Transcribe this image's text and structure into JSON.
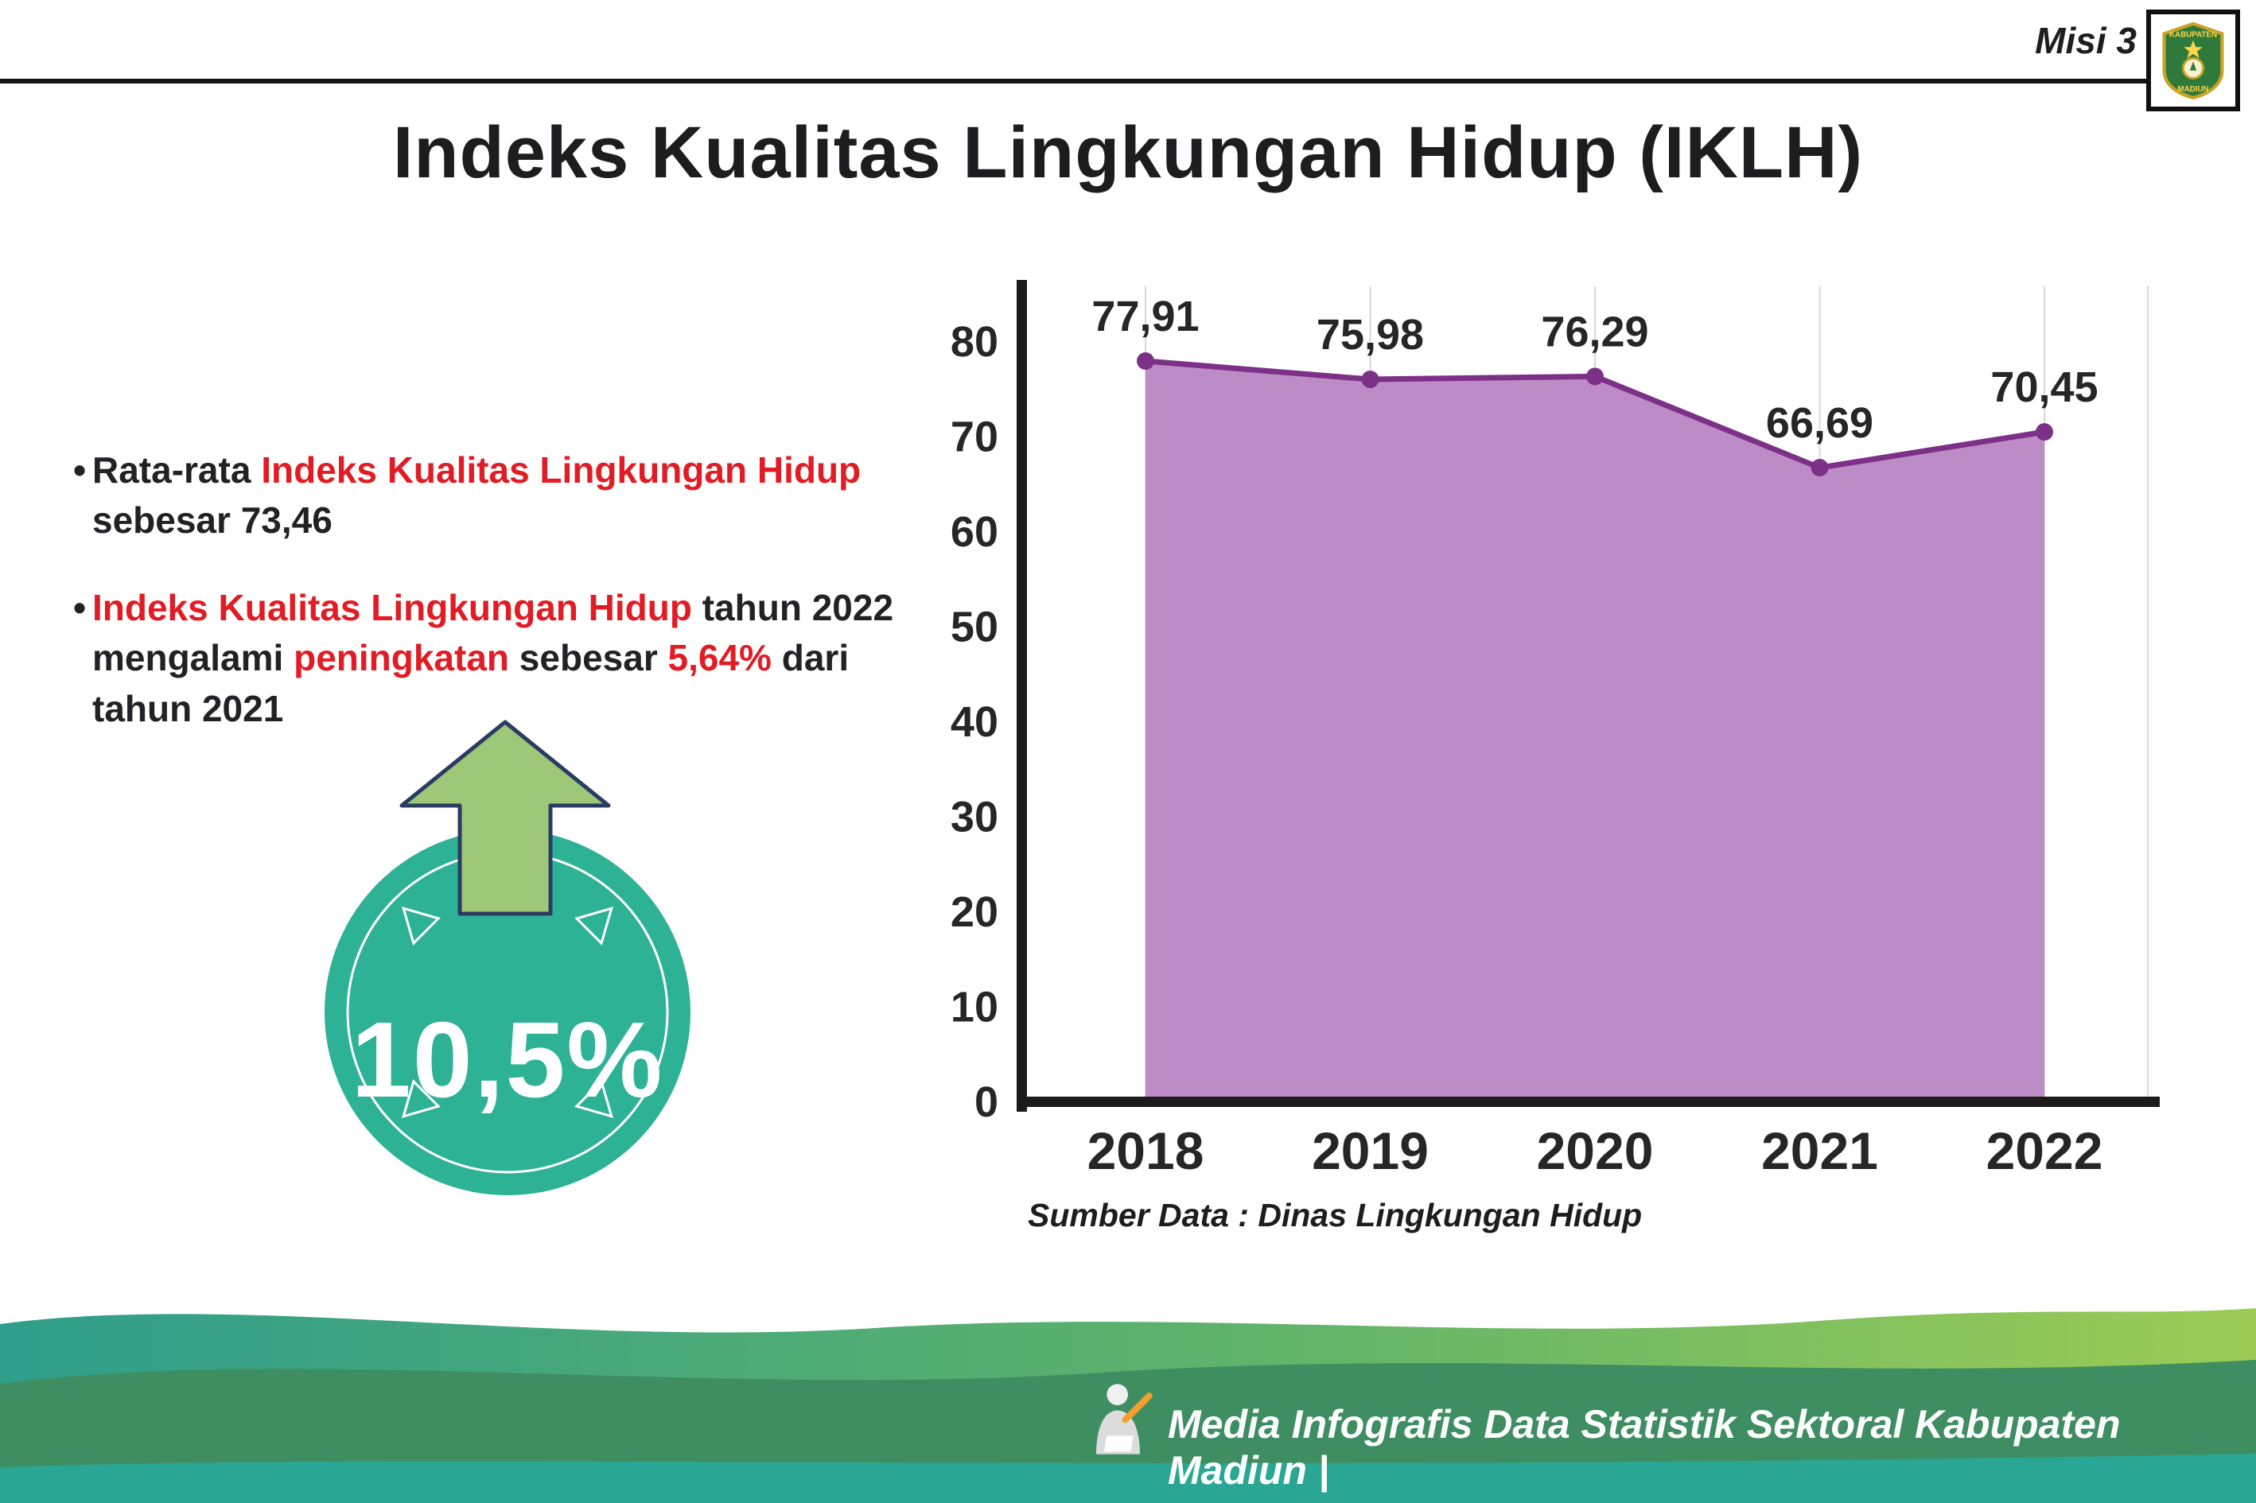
{
  "header": {
    "misi": "Misi 3",
    "title": "Indeks Kualitas Lingkungan Hidup (IKLH)",
    "logo": {
      "top_text": "KABUPATEN",
      "bottom_text": "MADIUN"
    }
  },
  "list": {
    "bullet_char": "•",
    "items": [
      {
        "segments": [
          {
            "t": "Rata-rata ",
            "c": "dark"
          },
          {
            "t": "Indeks Kualitas Lingkungan Hidup",
            "c": "red"
          },
          {
            "t": " sebesar 73,46",
            "c": "dark"
          }
        ]
      },
      {
        "segments": [
          {
            "t": "Indeks Kualitas Lingkungan Hidup",
            "c": "red"
          },
          {
            "t": " tahun 2022 mengalami ",
            "c": "dark"
          },
          {
            "t": "peningkatan",
            "c": "red"
          },
          {
            "t": " sebesar ",
            "c": "dark"
          },
          {
            "t": "5,64%",
            "c": "red"
          },
          {
            "t": " dari tahun 2021",
            "c": "dark"
          }
        ]
      }
    ]
  },
  "badge": {
    "value": "10,5%"
  },
  "chart_data": {
    "type": "area",
    "categories": [
      "2018",
      "2019",
      "2020",
      "2021",
      "2022"
    ],
    "values": [
      77.91,
      75.98,
      76.29,
      66.69,
      70.45
    ],
    "value_labels": [
      "77,91",
      "75,98",
      "76,29",
      "66,69",
      "70,45"
    ],
    "title": "",
    "xlabel": "",
    "ylabel": "",
    "ylim": [
      0,
      80
    ],
    "yticks": [
      0,
      10,
      20,
      30,
      40,
      50,
      60,
      70,
      80
    ],
    "grid": "vertical-light",
    "legend": "none",
    "source": "Sumber Data : Dinas Lingkungan Hidup",
    "colors": {
      "fill": "#bd8cc6",
      "line": "#7d3087",
      "dot": "#7d3087",
      "axis": "#1b1b1b",
      "grid": "#d8d8d8"
    }
  },
  "footer": {
    "credit": "Media Infografis Data Statistik Sektoral Kabupaten Madiun |"
  },
  "colors": {
    "accent_red": "#e11c24",
    "dark_text": "#222226",
    "badge_teal": "#2eb296",
    "arrow_green": "#9cc878",
    "footer_green": "#3e8e62",
    "footer_teal": "#2aa794"
  }
}
